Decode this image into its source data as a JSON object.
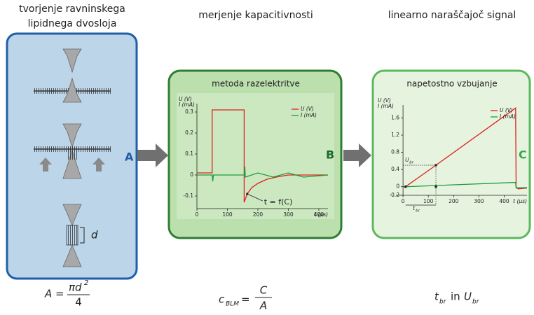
{
  "columns": [
    {
      "title": [
        "tvorjenje ravninskega",
        "lipidnega dvosloja"
      ],
      "label": "A",
      "dimension": "d",
      "formula": {
        "lhs": "A =",
        "numerator": "πd",
        "exponent": "2",
        "denominator": "4"
      }
    },
    {
      "title": [
        "merjenje kapacitivnosti"
      ],
      "panel_title": "metoda razelektritve",
      "label": "B",
      "formula": {
        "lhs": "c",
        "subscript": "BLM",
        "equals": "=",
        "numerator": "C",
        "denominator": "A"
      }
    },
    {
      "title": [
        "linearno naraščajoč signal"
      ],
      "panel_title": "napetostno vzbujanje",
      "label": "C",
      "formula": {
        "t": "t",
        "t_sub": "br",
        "in": "in",
        "u": "U",
        "u_sub": "br"
      }
    }
  ],
  "chart_data": [
    {
      "type": "line",
      "ylabel": [
        "U (V)",
        "I (mA)"
      ],
      "xlabel": "t (µs)",
      "xlim": [
        0,
        430
      ],
      "ylim": [
        -0.16,
        0.34
      ],
      "xticks": [
        0,
        100,
        200,
        300,
        400
      ],
      "yticks": [
        -0.1,
        0,
        0.1,
        0.2,
        0.3
      ],
      "annotation": "t = f(C)",
      "legend": "upper right",
      "series": [
        {
          "name": "U (V)",
          "color": "#e02020",
          "x": [
            0,
            50,
            50,
            155,
            155,
            165,
            180,
            200,
            230,
            260,
            300,
            350,
            430
          ],
          "values": [
            0.01,
            0.01,
            0.31,
            0.31,
            -0.13,
            -0.09,
            -0.06,
            -0.04,
            -0.02,
            -0.01,
            0,
            0,
            0
          ]
        },
        {
          "name": "I (mA)",
          "color": "#1e9a3a",
          "x": [
            0,
            50,
            52,
            54,
            155,
            157,
            159,
            200,
            250,
            300,
            350,
            430
          ],
          "values": [
            0,
            0,
            -0.03,
            0,
            0,
            0.04,
            -0.01,
            0.01,
            -0.01,
            0.01,
            -0.01,
            0
          ]
        }
      ]
    },
    {
      "type": "line",
      "ylabel": [
        "U (V)",
        "I (mA)"
      ],
      "xlabel": "t (µs)",
      "xlim": [
        -28,
        490
      ],
      "ylim": [
        -0.2,
        1.9
      ],
      "xticks": [
        0,
        100,
        200,
        300,
        400
      ],
      "yticks": [
        -0.2,
        0,
        0.4,
        0.8,
        1.2,
        1.6
      ],
      "threshold_label": {
        "u": "U",
        "u_sub": "br",
        "t": "t",
        "t_sub": "br"
      },
      "legend": "upper right",
      "series": [
        {
          "name": "U (V)",
          "color": "#e02020",
          "x": [
            0,
            10,
            130,
            445,
            447,
            455,
            490
          ],
          "values": [
            0,
            0,
            0.5,
            1.83,
            0,
            -0.05,
            -0.03
          ]
        },
        {
          "name": "I (mA)",
          "color": "#1e9a3a",
          "x": [
            0,
            10,
            445,
            447,
            490
          ],
          "values": [
            0,
            0,
            0.1,
            -0.03,
            -0.02
          ]
        }
      ]
    }
  ]
}
